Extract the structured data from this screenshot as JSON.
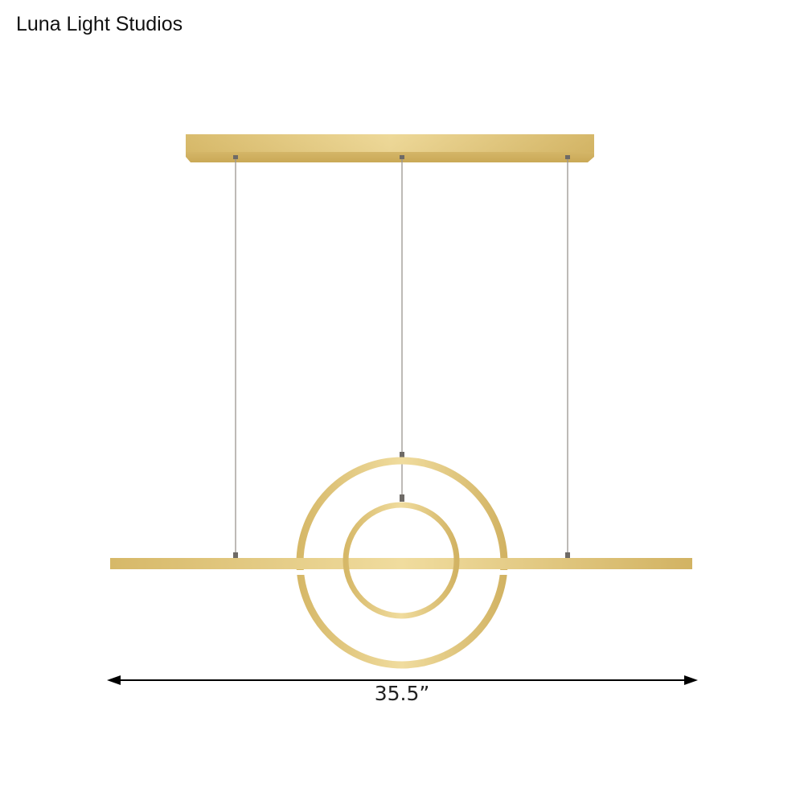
{
  "brand": {
    "name": "Luna Light Studios"
  },
  "product": {
    "finish_color": "#d9bd72",
    "dimension_label": "35.5”"
  }
}
